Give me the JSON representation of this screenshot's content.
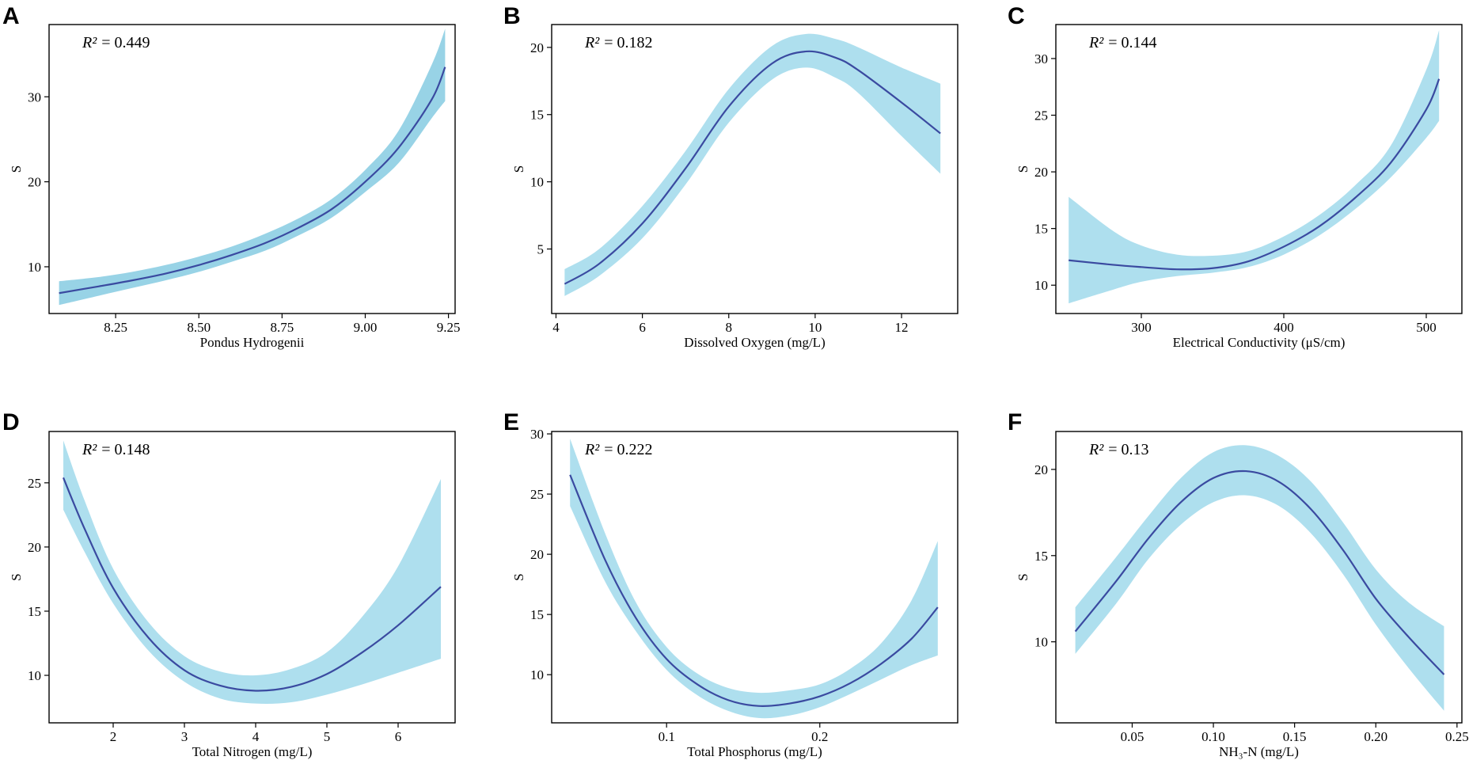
{
  "colors": {
    "band": "#aedfee",
    "band_dark": "#98d3e6",
    "line": "#3a4aa0",
    "frame": "#000000"
  },
  "chart_data": [
    {
      "type": "line",
      "panel": "A",
      "r2_label": "R²",
      "r2_value": "0.449",
      "r2_text": "= 0.449",
      "xlabel": "Pondus Hydrogenii",
      "ylabel": "S",
      "xlim": [
        8.05,
        9.27
      ],
      "ylim": [
        4.5,
        38.5
      ],
      "xticks": [
        8.25,
        8.5,
        8.75,
        9.0,
        9.25
      ],
      "xtick_labels": [
        "8.25",
        "8.50",
        "8.75",
        "9.00",
        "9.25"
      ],
      "yticks": [
        10,
        20,
        30
      ],
      "ytick_labels": [
        "10",
        "20",
        "30"
      ],
      "x": [
        8.08,
        8.2,
        8.3,
        8.4,
        8.5,
        8.6,
        8.7,
        8.8,
        8.9,
        9.0,
        9.1,
        9.2,
        9.24
      ],
      "y": [
        6.9,
        7.7,
        8.4,
        9.2,
        10.2,
        11.4,
        12.8,
        14.6,
        16.8,
        20.0,
        24.0,
        29.7,
        33.5
      ],
      "lower": [
        5.5,
        6.6,
        7.5,
        8.4,
        9.4,
        10.6,
        11.9,
        13.7,
        15.8,
        18.8,
        22.2,
        27.5,
        29.5
      ],
      "upper": [
        8.3,
        8.8,
        9.4,
        10.2,
        11.2,
        12.4,
        13.9,
        15.7,
        18.0,
        21.4,
        26.0,
        33.8,
        38.0
      ]
    },
    {
      "type": "line",
      "panel": "B",
      "r2_label": "R²",
      "r2_value": "0.182",
      "r2_text": "= 0.182",
      "xlabel": "Dissolved Oxygen (mg/L)",
      "ylabel": "S",
      "xlim": [
        3.9,
        13.3
      ],
      "ylim": [
        0.2,
        21.7
      ],
      "xticks": [
        4,
        6,
        8,
        10,
        12
      ],
      "xtick_labels": [
        "4",
        "6",
        "8",
        "10",
        "12"
      ],
      "yticks": [
        5,
        10,
        15,
        20
      ],
      "ytick_labels": [
        "5",
        "10",
        "15",
        "20"
      ],
      "x": [
        4.2,
        5.0,
        6.0,
        7.0,
        8.0,
        9.0,
        9.8,
        10.5,
        11.0,
        12.0,
        12.9
      ],
      "y": [
        2.4,
        3.9,
        6.9,
        11.0,
        15.6,
        18.8,
        19.7,
        19.2,
        18.3,
        15.9,
        13.6
      ],
      "lower": [
        1.5,
        3.0,
        5.8,
        9.8,
        14.4,
        17.6,
        18.5,
        17.7,
        16.6,
        13.4,
        10.6
      ],
      "upper": [
        3.5,
        5.0,
        8.2,
        12.3,
        16.9,
        20.1,
        21.0,
        20.6,
        20.0,
        18.5,
        17.3
      ]
    },
    {
      "type": "line",
      "panel": "C",
      "r2_label": "R²",
      "r2_value": "0.144",
      "r2_text": "= 0.144",
      "xlabel": "Electrical Conductivity (μS/cm)",
      "ylabel": "S",
      "xlim": [
        240,
        525
      ],
      "ylim": [
        7.5,
        33.0
      ],
      "xticks": [
        300,
        400,
        500
      ],
      "xtick_labels": [
        "300",
        "400",
        "500"
      ],
      "yticks": [
        10,
        15,
        20,
        25,
        30
      ],
      "ytick_labels": [
        "10",
        "15",
        "20",
        "25",
        "30"
      ],
      "x": [
        249,
        280,
        300,
        325,
        350,
        375,
        400,
        425,
        450,
        475,
        500,
        509
      ],
      "y": [
        12.2,
        11.8,
        11.6,
        11.4,
        11.5,
        12.1,
        13.4,
        15.2,
        17.7,
        20.8,
        25.5,
        28.2
      ],
      "lower": [
        8.4,
        9.6,
        10.3,
        10.8,
        11.1,
        11.6,
        12.7,
        14.4,
        16.7,
        19.5,
        23.0,
        24.5
      ],
      "upper": [
        17.8,
        14.8,
        13.5,
        12.7,
        12.6,
        13.0,
        14.3,
        16.2,
        18.8,
        22.3,
        29.0,
        32.5
      ]
    },
    {
      "type": "line",
      "panel": "D",
      "r2_label": "R²",
      "r2_value": "0.148",
      "r2_text": "= 0.148",
      "xlabel": "Total Nitrogen (mg/L)",
      "ylabel": "S",
      "xlim": [
        1.1,
        6.8
      ],
      "ylim": [
        6.3,
        29.0
      ],
      "xticks": [
        2,
        3,
        4,
        5,
        6
      ],
      "xtick_labels": [
        "2",
        "3",
        "4",
        "5",
        "6"
      ],
      "yticks": [
        10,
        15,
        20,
        25
      ],
      "ytick_labels": [
        "10",
        "15",
        "20",
        "25"
      ],
      "x": [
        1.3,
        1.6,
        2.0,
        2.5,
        3.0,
        3.5,
        4.0,
        4.5,
        5.0,
        5.5,
        6.0,
        6.6
      ],
      "y": [
        25.4,
        21.4,
        16.8,
        12.9,
        10.4,
        9.2,
        8.8,
        9.1,
        10.1,
        11.8,
        13.9,
        16.9
      ],
      "lower": [
        22.9,
        19.6,
        15.6,
        11.9,
        9.5,
        8.2,
        7.8,
        7.9,
        8.5,
        9.3,
        10.2,
        11.3
      ],
      "upper": [
        28.3,
        23.6,
        18.3,
        14.1,
        11.5,
        10.3,
        10.0,
        10.5,
        11.8,
        14.6,
        18.5,
        25.3
      ]
    },
    {
      "type": "line",
      "panel": "E",
      "r2_label": "R²",
      "r2_value": "0.222",
      "r2_text": "= 0.222",
      "xlabel": "Total Phosphorus (mg/L)",
      "ylabel": "S",
      "xlim": [
        0.025,
        0.29
      ],
      "ylim": [
        6.0,
        30.2
      ],
      "xticks": [
        0.1,
        0.2
      ],
      "xtick_labels": [
        "0.1",
        "0.2"
      ],
      "yticks": [
        10,
        15,
        20,
        25,
        30
      ],
      "ytick_labels": [
        "10",
        "15",
        "20",
        "25",
        "30"
      ],
      "x": [
        0.037,
        0.06,
        0.08,
        0.1,
        0.12,
        0.14,
        0.16,
        0.18,
        0.2,
        0.22,
        0.24,
        0.26,
        0.277
      ],
      "y": [
        26.6,
        19.5,
        14.7,
        11.3,
        9.2,
        7.9,
        7.4,
        7.6,
        8.2,
        9.3,
        10.9,
        13.0,
        15.6
      ],
      "lower": [
        24.0,
        17.7,
        13.6,
        10.4,
        8.3,
        7.0,
        6.4,
        6.6,
        7.3,
        8.4,
        9.6,
        10.8,
        11.6
      ],
      "upper": [
        29.6,
        21.7,
        16.0,
        12.3,
        10.1,
        8.9,
        8.5,
        8.7,
        9.2,
        10.5,
        12.6,
        16.2,
        21.1
      ]
    },
    {
      "type": "line",
      "panel": "F",
      "r2_label": "R²",
      "r2_value": "0.13",
      "r2_text": "= 0.13",
      "xlabel": "NH₃-N (mg/L)",
      "ylabel": "S",
      "xlim": [
        0.003,
        0.253
      ],
      "ylim": [
        5.3,
        22.2
      ],
      "xticks": [
        0.05,
        0.1,
        0.15,
        0.2,
        0.25
      ],
      "xtick_labels": [
        "0.05",
        "0.10",
        "0.15",
        "0.20",
        "0.25"
      ],
      "yticks": [
        10,
        15,
        20
      ],
      "ytick_labels": [
        "10",
        "15",
        "20"
      ],
      "x": [
        0.015,
        0.04,
        0.06,
        0.08,
        0.1,
        0.12,
        0.14,
        0.16,
        0.18,
        0.2,
        0.22,
        0.242
      ],
      "y": [
        10.6,
        13.5,
        16.0,
        18.1,
        19.5,
        19.9,
        19.3,
        17.7,
        15.3,
        12.5,
        10.3,
        8.1
      ],
      "lower": [
        9.3,
        12.2,
        14.8,
        16.8,
        18.1,
        18.5,
        17.9,
        16.3,
        13.9,
        11.0,
        8.5,
        6.0
      ],
      "upper": [
        12.0,
        14.9,
        17.3,
        19.5,
        21.0,
        21.4,
        20.8,
        19.3,
        16.9,
        14.2,
        12.3,
        10.9
      ]
    }
  ]
}
